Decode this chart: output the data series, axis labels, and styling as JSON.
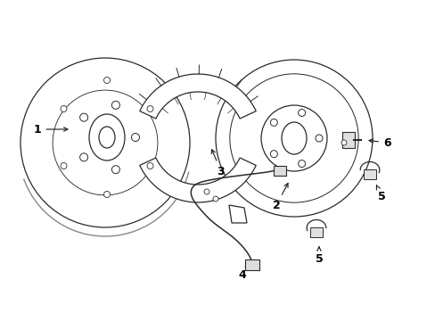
{
  "bg_color": "#ffffff",
  "line_color": "#2a2a2a",
  "label_color": "#000000",
  "fig_width": 4.89,
  "fig_height": 3.6,
  "dpi": 100,
  "arrow_color": "#1a1a1a",
  "lw": 0.9
}
